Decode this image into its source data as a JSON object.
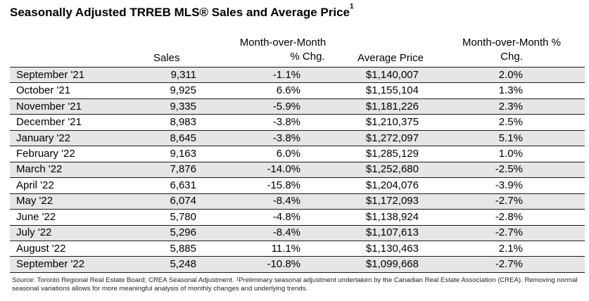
{
  "title": "Seasonally Adjusted TRREB MLS® Sales and Average Price",
  "title_sup": "1",
  "headers": {
    "sales": "Sales",
    "mom_line1": "Month-over-Month",
    "mom_line2": "% Chg.",
    "avg_price": "Average Price",
    "mom_pct_line1": "Month-over-Month %",
    "mom_pct_line2": "Chg."
  },
  "rows": [
    {
      "month": "September '21",
      "sales": "9,311",
      "mom": "-1.1%",
      "avg": "$1,140,007",
      "mom_pct": "2.0%"
    },
    {
      "month": "October '21",
      "sales": "9,925",
      "mom": "6.6%",
      "avg": "$1,155,104",
      "mom_pct": "1.3%"
    },
    {
      "month": "November '21",
      "sales": "9,335",
      "mom": "-5.9%",
      "avg": "$1,181,226",
      "mom_pct": "2.3%"
    },
    {
      "month": "December '21",
      "sales": "8,983",
      "mom": "-3.8%",
      "avg": "$1,210,375",
      "mom_pct": "2.5%"
    },
    {
      "month": "January '22",
      "sales": "8,645",
      "mom": "-3.8%",
      "avg": "$1,272,097",
      "mom_pct": "5.1%"
    },
    {
      "month": "February '22",
      "sales": "9,163",
      "mom": "6.0%",
      "avg": "$1,285,129",
      "mom_pct": "1.0%"
    },
    {
      "month": "March '22",
      "sales": "7,876",
      "mom": "-14.0%",
      "avg": "$1,252,680",
      "mom_pct": "-2.5%"
    },
    {
      "month": "April '22",
      "sales": "6,631",
      "mom": "-15.8%",
      "avg": "$1,204,076",
      "mom_pct": "-3.9%"
    },
    {
      "month": "May '22",
      "sales": "6,074",
      "mom": "-8.4%",
      "avg": "$1,172,093",
      "mom_pct": "-2.7%"
    },
    {
      "month": "June '22",
      "sales": "5,780",
      "mom": "-4.8%",
      "avg": "$1,138,924",
      "mom_pct": "-2.8%"
    },
    {
      "month": "July '22",
      "sales": "5,296",
      "mom": "-8.4%",
      "avg": "$1,107,613",
      "mom_pct": "-2.7%"
    },
    {
      "month": "August '22",
      "sales": "5,885",
      "mom": "11.1%",
      "avg": "$1,130,463",
      "mom_pct": "2.1%"
    },
    {
      "month": "September '22",
      "sales": "5,248",
      "mom": "-10.8%",
      "avg": "$1,099,668",
      "mom_pct": "-2.7%"
    }
  ],
  "source": {
    "text_a": "Source: Toronto Regional Real Estate Board; CREA Seasonal Adjustment. ",
    "sup": "1",
    "text_b": "Preliminary seasonal adjustment undertaken by the Canadian Real Estate Association (CREA).  Removing normal seasonal variations allows for more meaningful analysis of monthly changes and underlying trends."
  }
}
